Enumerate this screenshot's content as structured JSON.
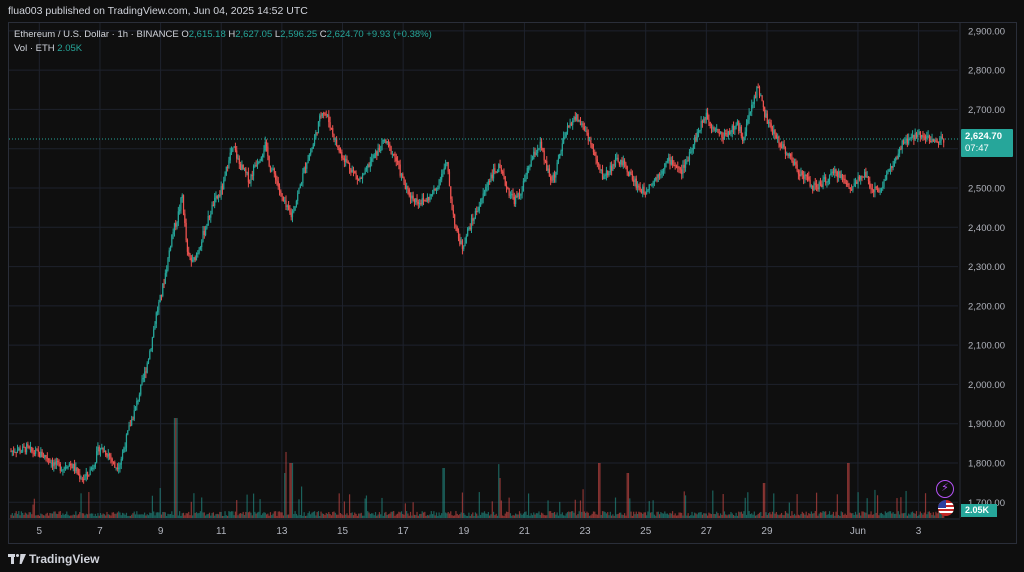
{
  "header": {
    "publish_text": "flua003 published on TradingView.com, Jun 04, 2025 14:52 UTC"
  },
  "legend": {
    "symbol": "Ethereum / U.S. Dollar · 1h · BINANCE",
    "open_label": "O",
    "open": "2,615.18",
    "high_label": "H",
    "high": "2,627.05",
    "low_label": "L",
    "low": "2,596.25",
    "close_label": "C",
    "close": "2,624.70",
    "change": "+9.93 (+0.38%)",
    "vol_label": "Vol · ETH",
    "vol": "2.05K"
  },
  "price_tag": {
    "price": "2,624.70",
    "countdown": "07:47"
  },
  "vol_tag": "2.05K",
  "footer": {
    "brand": "TradingView"
  },
  "colors": {
    "up": "#26a69a",
    "down": "#ef5350",
    "background": "#0f0f0f",
    "grid": "#1e222d",
    "last_price": "#26a69a"
  },
  "icons": {
    "alert": "lightning-icon",
    "country": "us-flag-icon",
    "logo": "tradingview-logo-icon"
  },
  "chart_data": {
    "type": "candlestick",
    "interval": "1h",
    "symbol": "ETHUSD",
    "exchange": "BINANCE",
    "ylim": [
      1660,
      2920
    ],
    "y_ticks": [
      1700,
      1800,
      1900,
      2000,
      2100,
      2200,
      2300,
      2400,
      2500,
      2600,
      2700,
      2800,
      2900
    ],
    "y_tick_labels": [
      "1,700.00",
      "1,800.00",
      "1,900.00",
      "2,000.00",
      "2,100.00",
      "2,200.00",
      "2,300.00",
      "2,400.00",
      "2,500.00",
      "2,600.00",
      "2,700.00",
      "2,800.00",
      "2,900.00"
    ],
    "x_tick_labels": [
      "5",
      "7",
      "9",
      "11",
      "13",
      "15",
      "17",
      "19",
      "21",
      "23",
      "25",
      "27",
      "29",
      "Jun",
      "3"
    ],
    "x_tick_day_index": [
      1,
      3,
      5,
      7,
      9,
      11,
      13,
      15,
      17,
      19,
      21,
      23,
      25,
      28,
      30
    ],
    "day_start_index": 0,
    "days_shown": 31.3,
    "last_price": 2624.7,
    "closes_every_4h": [
      1830,
      1835,
      1832,
      1838,
      1828,
      1825,
      1820,
      1815,
      1800,
      1792,
      1788,
      1800,
      1790,
      1770,
      1760,
      1775,
      1800,
      1840,
      1830,
      1820,
      1790,
      1800,
      1850,
      1900,
      1940,
      1990,
      2040,
      2100,
      2180,
      2230,
      2300,
      2380,
      2420,
      2480,
      2330,
      2310,
      2340,
      2380,
      2420,
      2460,
      2480,
      2510,
      2580,
      2600,
      2560,
      2540,
      2520,
      2560,
      2580,
      2610,
      2550,
      2530,
      2480,
      2450,
      2430,
      2470,
      2520,
      2570,
      2600,
      2650,
      2700,
      2680,
      2640,
      2600,
      2580,
      2560,
      2540,
      2520,
      2530,
      2560,
      2580,
      2600,
      2620,
      2600,
      2580,
      2540,
      2500,
      2480,
      2470,
      2465,
      2470,
      2480,
      2500,
      2540,
      2560,
      2450,
      2380,
      2350,
      2390,
      2420,
      2450,
      2480,
      2520,
      2540,
      2550,
      2520,
      2490,
      2470,
      2480,
      2520,
      2560,
      2590,
      2610,
      2560,
      2520,
      2540,
      2600,
      2640,
      2670,
      2680,
      2660,
      2640,
      2600,
      2560,
      2530,
      2540,
      2560,
      2570,
      2560,
      2540,
      2520,
      2500,
      2490,
      2510,
      2520,
      2540,
      2560,
      2570,
      2560,
      2540,
      2560,
      2600,
      2630,
      2660,
      2690,
      2660,
      2650,
      2630,
      2640,
      2650,
      2660,
      2630,
      2670,
      2720,
      2760,
      2700,
      2660,
      2640,
      2620,
      2600,
      2580,
      2560,
      2540,
      2530,
      2510,
      2500,
      2510,
      2520,
      2530,
      2540,
      2530,
      2510,
      2500,
      2520,
      2540,
      2520,
      2500,
      2490,
      2510,
      2540,
      2560,
      2580,
      2620,
      2620,
      2630,
      2640,
      2635,
      2625,
      2615,
      2624
    ],
    "volume_spikes": [
      {
        "day": 5.3,
        "value": 1.0
      },
      {
        "day": 8.8,
        "value": 0.45
      },
      {
        "day": 9.0,
        "value": 0.55
      },
      {
        "day": 13.9,
        "value": 0.5
      },
      {
        "day": 15.7,
        "value": 0.4
      },
      {
        "day": 18.9,
        "value": 0.55
      },
      {
        "day": 19.8,
        "value": 0.45
      },
      {
        "day": 24.2,
        "value": 0.35
      },
      {
        "day": 26.9,
        "value": 0.55
      }
    ]
  }
}
